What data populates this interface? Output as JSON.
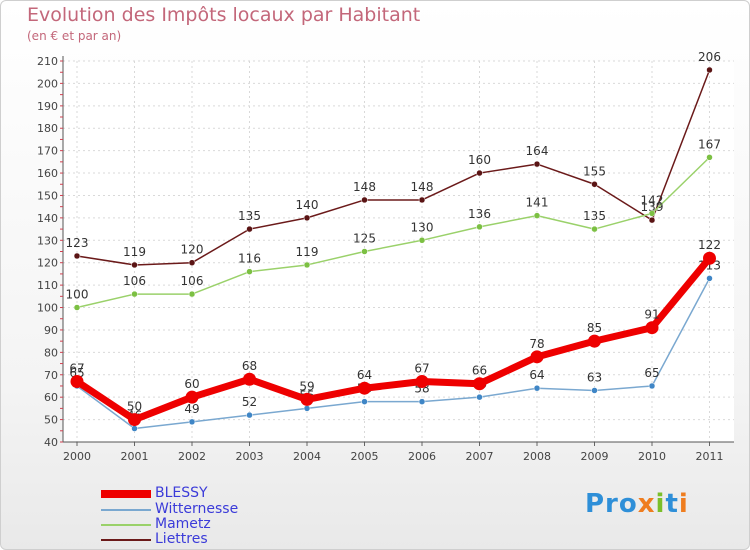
{
  "title": "Evolution des Impôts locaux par Habitant",
  "subtitle": "(en € et par an)",
  "logo": {
    "p1": "Pro",
    "x": "x",
    "i": "i",
    "t": "t",
    "i2": "i"
  },
  "chart_data": {
    "type": "line",
    "x": [
      "2000",
      "2001",
      "2002",
      "2003",
      "2004",
      "2005",
      "2006",
      "2007",
      "2008",
      "2009",
      "2010",
      "2011"
    ],
    "ylim": [
      40,
      210
    ],
    "yticks": [
      40,
      50,
      60,
      70,
      80,
      90,
      100,
      110,
      120,
      130,
      140,
      150,
      160,
      170,
      180,
      190,
      200,
      210
    ],
    "grid": true,
    "legend_position": "bottom-left",
    "series": [
      {
        "name": "Liettres",
        "color": "#6b1a1a",
        "dot": "#5a1414",
        "values": [
          123,
          119,
          120,
          135,
          140,
          148,
          148,
          160,
          164,
          155,
          139,
          206
        ]
      },
      {
        "name": "Mametz",
        "color": "#9ad16a",
        "dot": "#7cc043",
        "values": [
          100,
          106,
          106,
          116,
          119,
          125,
          130,
          136,
          141,
          135,
          142,
          167
        ]
      },
      {
        "name": "Witternesse",
        "color": "#7aa8d0",
        "dot": "#3f86c6",
        "values": [
          65,
          46,
          49,
          52,
          55,
          58,
          58,
          60,
          64,
          63,
          65,
          113
        ]
      },
      {
        "name": "BLESSY",
        "color": "#ee0000",
        "dot": "#ee0000",
        "values": [
          67,
          50,
          60,
          68,
          59,
          64,
          67,
          66,
          78,
          85,
          91,
          122
        ]
      }
    ],
    "legend": [
      "BLESSY",
      "Witternesse",
      "Mametz",
      "Liettres"
    ]
  }
}
